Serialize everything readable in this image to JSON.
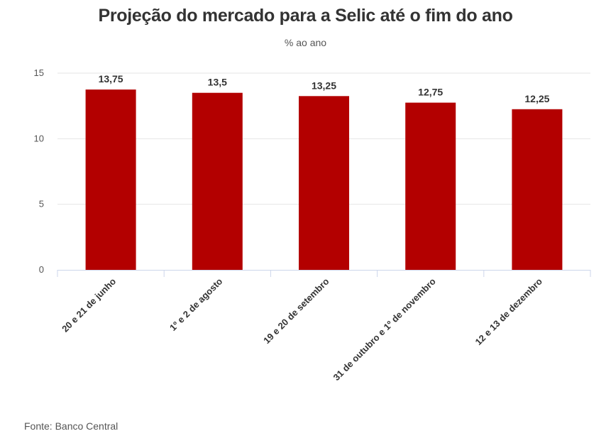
{
  "chart_data": {
    "type": "bar",
    "title": "Projeção do mercado para a Selic até o fim do ano",
    "subtitle": "% ao ano",
    "categories": [
      "20 e 21 de junho",
      "1º e 2 de agosto",
      "19 e 20 de setembro",
      "31 de outubro e 1º de novembro",
      "12 e 13 de dezembro"
    ],
    "values": [
      13.75,
      13.5,
      13.25,
      12.75,
      12.25
    ],
    "data_labels": [
      "13,75",
      "13,5",
      "13,25",
      "12,75",
      "12,25"
    ],
    "ylim": [
      0,
      15
    ],
    "yticks": [
      0,
      5,
      10,
      15
    ],
    "xlabel": "",
    "ylabel": "",
    "grid": true,
    "legend": "none",
    "bar_color": "#B30000",
    "source": "Fonte: Banco Central"
  }
}
